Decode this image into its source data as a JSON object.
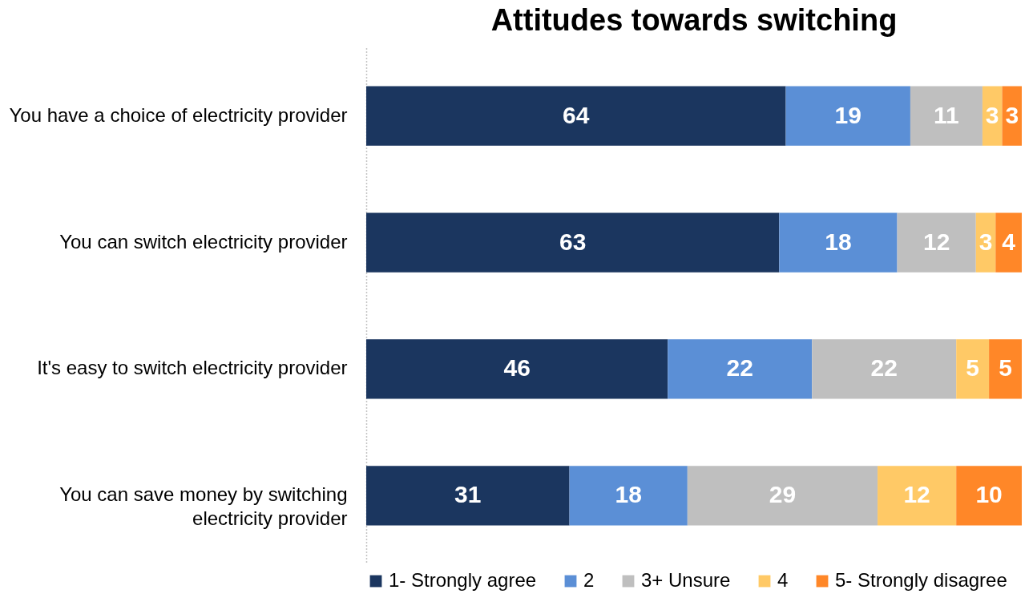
{
  "chart_data": {
    "type": "bar",
    "title": "Attitudes towards switching",
    "orientation": "horizontal",
    "stacked": true,
    "data_labels": true,
    "legend": "bottom",
    "grid": false,
    "categories": [
      "You have a choice of electricity provider",
      "You can switch electricity provider",
      "It's easy to switch electricity provider",
      "You can save money by switching\nelectricity provider"
    ],
    "series": [
      {
        "name": "1- Strongly agree",
        "color": "#1b365f",
        "values": [
          64,
          63,
          46,
          31
        ]
      },
      {
        "name": "2",
        "color": "#5b8fd6",
        "values": [
          19,
          18,
          22,
          18
        ]
      },
      {
        "name": "3+ Unsure",
        "color": "#bfbfbf",
        "values": [
          11,
          12,
          22,
          29
        ]
      },
      {
        "name": "4",
        "color": "#ffc966",
        "values": [
          3,
          3,
          5,
          12
        ]
      },
      {
        "name": "5- Strongly disagree",
        "color": "#ff8728",
        "values": [
          3,
          4,
          5,
          10
        ]
      }
    ]
  }
}
